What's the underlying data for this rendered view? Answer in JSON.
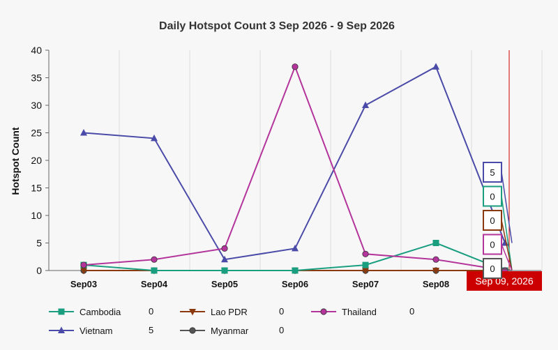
{
  "chart_data": {
    "type": "line",
    "title": "Daily Hotspot Count 3 Sep 2026 - 9 Sep 2026",
    "xlabel": "",
    "ylabel": "Hotspot Count",
    "ylim": [
      0,
      40
    ],
    "yticks": [
      0,
      5,
      10,
      15,
      20,
      25,
      30,
      35,
      40
    ],
    "categories": [
      "Sep03",
      "Sep04",
      "Sep05",
      "Sep06",
      "Sep07",
      "Sep08",
      "Sep09"
    ],
    "grid": true,
    "legend_position": "bottom",
    "series": [
      {
        "name": "Cambodia",
        "color": "#1a9e80",
        "marker": "square",
        "values": [
          1,
          0,
          0,
          0,
          1,
          5,
          0
        ],
        "legend_value": "0"
      },
      {
        "name": "Lao PDR",
        "color": "#8b3a0f",
        "marker": "triangle-down",
        "values": [
          0,
          0,
          0,
          0,
          0,
          0,
          0
        ],
        "legend_value": "0"
      },
      {
        "name": "Thailand",
        "color": "#b3349a",
        "marker": "circle",
        "values": [
          1,
          2,
          4,
          37,
          3,
          2,
          0
        ],
        "legend_value": "0"
      },
      {
        "name": "Vietnam",
        "color": "#4a4aa8",
        "marker": "triangle-up",
        "values": [
          25,
          24,
          2,
          4,
          30,
          37,
          5
        ],
        "legend_value": "5"
      },
      {
        "name": "Myanmar",
        "color": "#555555",
        "marker": "circle",
        "values": [
          0,
          0,
          0,
          0,
          0,
          0,
          0
        ],
        "legend_value": "0"
      }
    ],
    "hover": {
      "date_label": "Sep 09, 2026",
      "date_bg": "#cc0000",
      "category_index": 6,
      "values": [
        {
          "series": "Vietnam",
          "value": "5"
        },
        {
          "series": "Cambodia",
          "value": "0"
        },
        {
          "series": "Lao PDR",
          "value": "0"
        },
        {
          "series": "Thailand",
          "value": "0"
        },
        {
          "series": "Myanmar",
          "value": "0"
        }
      ]
    }
  }
}
